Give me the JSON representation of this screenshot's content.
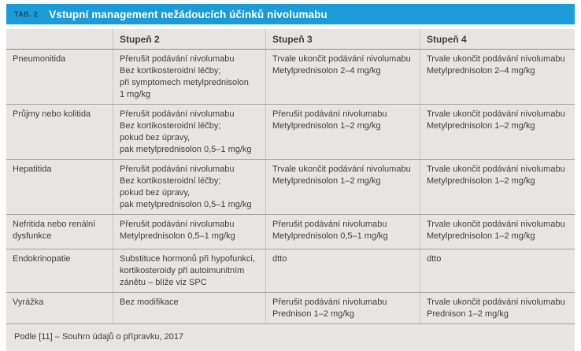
{
  "title_bar": {
    "tag": "TAB. 2",
    "title": "Vstupní management nežádoucích účinků nivolumabu"
  },
  "table": {
    "columns": [
      "Stupeň 2",
      "Stupeň 3",
      "Stupeň 4"
    ],
    "rows": [
      {
        "label": "Pneumonitida",
        "cells": [
          [
            "Přerušit podávání nivolumabu",
            "Bez kortikosteroidní léčby;",
            "při symptomech metylprednisolon",
            "1 mg/kg"
          ],
          [
            "Trvale ukončit podávání nivolumabu",
            "Metylprednisolon 2–4 mg/kg"
          ],
          [
            "Trvale ukončit podávání nivolumabu",
            "Metylprednisolon 2–4 mg/kg"
          ]
        ]
      },
      {
        "label": "Průjmy nebo kolitida",
        "cells": [
          [
            "Přerušit podávání nivolumabu",
            "Bez kortikosteroidní léčby;",
            "pokud bez úpravy,",
            "pak metylprednisolon 0,5–1 mg/kg"
          ],
          [
            "Přerušit podávání nivolumabu",
            "Metylprednisolon 1–2 mg/kg"
          ],
          [
            "Trvale ukončit podávání nivolumabu",
            "Metylprednisolon 1–2 mg/kg"
          ]
        ]
      },
      {
        "label": "Hepatitida",
        "cells": [
          [
            "Přerušit podávání nivolumabu",
            "Bez kortikosteroidní léčby;",
            "pokud bez úpravy,",
            "pak metylprednisolon 0,5–1 mg/kg"
          ],
          [
            "Trvale ukončit podávání nivolumabu",
            "Metylprednisolon 1–2 mg/kg"
          ],
          [
            "Trvale ukončit podávání nivolumabu",
            "Metylprednisolon 1–2 mg/kg"
          ]
        ]
      },
      {
        "label": "Nefritida nebo renální dysfunkce",
        "cells": [
          [
            "Přerušit podávání nivolumabu",
            "Metylprednisolon 0,5–1 mg/kg"
          ],
          [
            "Přerušit podávání nivolumabu",
            "Metylprednisolon 0,5–1 mg/kg"
          ],
          [
            "Trvale ukončit podávání nivolumabu",
            "Metylprednisolon 1–2 mg/kg"
          ]
        ]
      },
      {
        "label": "Endokrinopatie",
        "cells": [
          [
            "Substituce hormonů při hypofunkci,",
            "kortikosteroidy při autoimunitním",
            "zánětu – blíže viz SPC"
          ],
          [
            "dtto"
          ],
          [
            "dtto"
          ]
        ]
      },
      {
        "label": "Vyrážka",
        "cells": [
          [
            "Bez modifikace"
          ],
          [
            "Přerušit podávání nivolumabu",
            "Prednison 1–2 mg/kg"
          ],
          [
            "Trvale ukončit podávání nivolumabu",
            "Prednison 1–2 mg/kg"
          ]
        ]
      }
    ]
  },
  "footer": {
    "source": "Podle [11] – Souhrn údajů o přípravku, 2017"
  },
  "colors": {
    "accent_blue": "#1b9cd8",
    "tag_text": "#1c4b66",
    "table_background": "#e7e5e3",
    "body_text": "#3e3e3d"
  }
}
